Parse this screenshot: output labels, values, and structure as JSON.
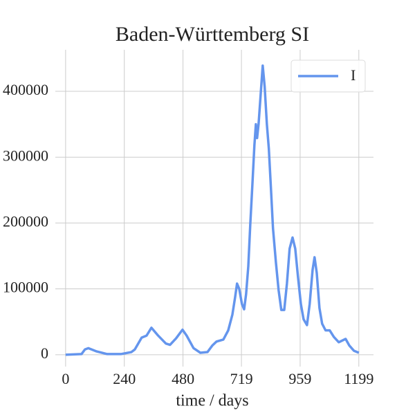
{
  "chart_data": {
    "type": "line",
    "title": "Baden-Württemberg SI",
    "xlabel": "time / days",
    "x": [
      0,
      65,
      79,
      93,
      127,
      170,
      226,
      269,
      283,
      311,
      331,
      351,
      376,
      410,
      427,
      452,
      478,
      495,
      523,
      551,
      580,
      600,
      617,
      645,
      665,
      682,
      693,
      701,
      710,
      721,
      730,
      738,
      747,
      755,
      764,
      772,
      778,
      783,
      789,
      798,
      806,
      814,
      823,
      831,
      840,
      848,
      860,
      871,
      882,
      894,
      905,
      916,
      928,
      939,
      950,
      962,
      973,
      987,
      998,
      1010,
      1018,
      1027,
      1038,
      1049,
      1063,
      1080,
      1097,
      1117,
      1145,
      1160,
      1179,
      1199
    ],
    "series": [
      {
        "name": "I",
        "color": "#6495ed",
        "values": [
          0,
          1000,
          8000,
          10000,
          5000,
          1000,
          1000,
          4000,
          8000,
          26000,
          29000,
          41000,
          30000,
          17000,
          15000,
          25000,
          38000,
          29000,
          10000,
          3000,
          4000,
          14000,
          20000,
          23000,
          37000,
          61000,
          87000,
          108000,
          100000,
          77000,
          69000,
          92000,
          134000,
          197000,
          260000,
          318000,
          350000,
          329000,
          350000,
          397000,
          439000,
          407000,
          350000,
          313000,
          250000,
          192000,
          140000,
          98000,
          68000,
          68000,
          108000,
          161000,
          178000,
          161000,
          119000,
          77000,
          54000,
          45000,
          77000,
          129000,
          148000,
          124000,
          71000,
          47000,
          37000,
          37000,
          27000,
          19000,
          24000,
          14000,
          6000,
          3000
        ]
      }
    ],
    "xlim": [
      -42,
      1259
    ],
    "ylim": [
      -18000,
      463000
    ],
    "xticks": [
      0,
      240,
      480,
      719,
      959,
      1199
    ],
    "yticks": [
      0,
      100000,
      200000,
      300000,
      400000
    ],
    "grid": true,
    "legend": "upper right"
  }
}
